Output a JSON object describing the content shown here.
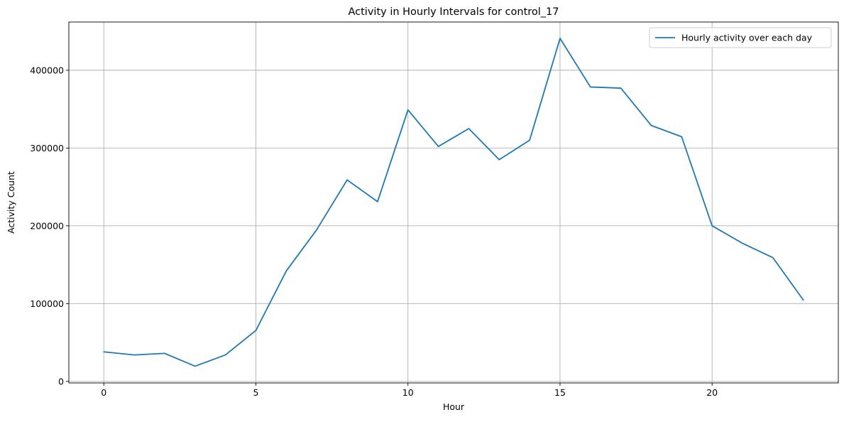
{
  "chart_data": {
    "type": "line",
    "title": "Activity in Hourly Intervals for control_17",
    "xlabel": "Hour",
    "ylabel": "Activity Count",
    "xlim": [
      -1.15,
      24.15
    ],
    "ylim": [
      -2000,
      462000
    ],
    "xticks": [
      0,
      5,
      10,
      15,
      20
    ],
    "yticks": [
      0,
      100000,
      200000,
      300000,
      400000
    ],
    "grid": true,
    "legend_position": "top-right",
    "series": [
      {
        "name": "Hourly activity over each day",
        "color": "#1f77b4",
        "x": [
          0,
          1,
          2,
          3,
          4,
          5,
          6,
          7,
          8,
          9,
          10,
          11,
          12,
          13,
          14,
          15,
          16,
          17,
          18,
          19,
          20,
          21,
          22,
          23
        ],
        "values": [
          38000,
          34000,
          36000,
          19500,
          34000,
          65500,
          142000,
          195000,
          259000,
          231000,
          349000,
          302000,
          325000,
          285000,
          310000,
          441000,
          378500,
          377000,
          329000,
          314500,
          200000,
          177500,
          159000,
          104500
        ]
      }
    ]
  }
}
